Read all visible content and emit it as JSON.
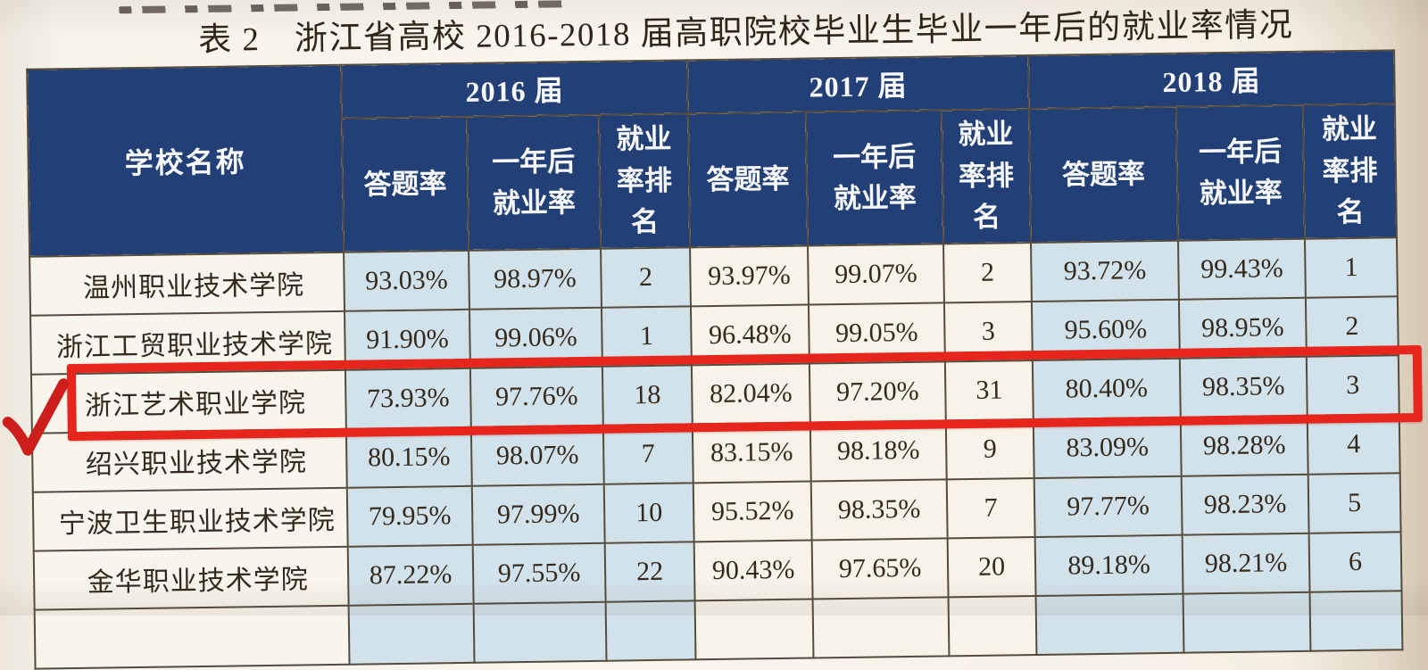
{
  "title": "表 2　浙江省高校 2016-2018 届高职院校毕业生毕业一年后的就业率情况",
  "table": {
    "name_header": "学校名称",
    "group_headers": [
      "2016 届",
      "2017 届",
      "2018 届"
    ],
    "sub_headers": [
      "答题率",
      "一年后就业率",
      "就业率排名"
    ],
    "rows": [
      {
        "school": "温州职业技术学院",
        "values": [
          "93.03%",
          "98.97%",
          "2",
          "93.97%",
          "99.07%",
          "2",
          "93.72%",
          "99.43%",
          "1"
        ],
        "highlighted": false
      },
      {
        "school": "浙江工贸职业技术学院",
        "values": [
          "91.90%",
          "99.06%",
          "1",
          "96.48%",
          "99.05%",
          "3",
          "95.60%",
          "98.95%",
          "2"
        ],
        "highlighted": false
      },
      {
        "school": "浙江艺术职业学院",
        "values": [
          "73.93%",
          "97.76%",
          "18",
          "82.04%",
          "97.20%",
          "31",
          "80.40%",
          "98.35%",
          "3"
        ],
        "highlighted": true
      },
      {
        "school": "绍兴职业技术学院",
        "values": [
          "80.15%",
          "98.07%",
          "7",
          "83.15%",
          "98.18%",
          "9",
          "83.09%",
          "98.28%",
          "4"
        ],
        "highlighted": false
      },
      {
        "school": "宁波卫生职业技术学院",
        "values": [
          "79.95%",
          "97.99%",
          "10",
          "95.52%",
          "98.35%",
          "7",
          "97.77%",
          "98.23%",
          "5"
        ],
        "highlighted": false
      },
      {
        "school": "金华职业技术学院",
        "values": [
          "87.22%",
          "97.55%",
          "22",
          "90.43%",
          "97.65%",
          "20",
          "89.18%",
          "98.21%",
          "6"
        ],
        "highlighted": false
      }
    ]
  },
  "annotation": {
    "checkmark_icon": "✓",
    "highlighted_school": "浙江艺术职业学院"
  },
  "colors": {
    "header_navy": "#234076",
    "cell_blue": "#d2e2ea",
    "cell_cream": "#f7f3e9",
    "grid_line": "#554b3d",
    "highlight_red": "#e6251c",
    "checkmark_red": "#cc1f1c",
    "title_text": "#2f2619"
  }
}
